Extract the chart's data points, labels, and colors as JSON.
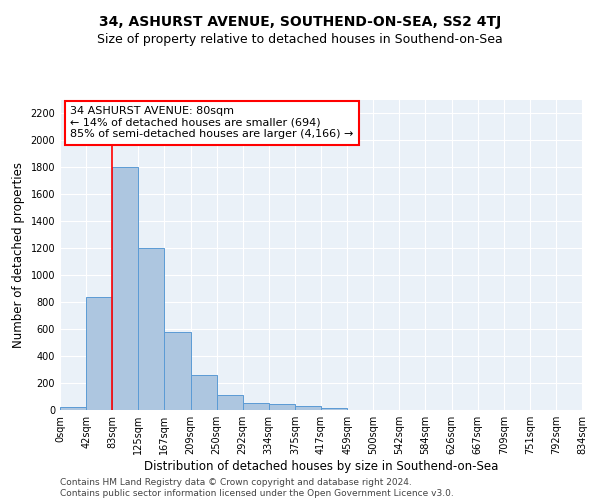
{
  "title": "34, ASHURST AVENUE, SOUTHEND-ON-SEA, SS2 4TJ",
  "subtitle": "Size of property relative to detached houses in Southend-on-Sea",
  "xlabel": "Distribution of detached houses by size in Southend-on-Sea",
  "ylabel": "Number of detached properties",
  "bar_values": [
    25,
    840,
    1800,
    1200,
    580,
    260,
    110,
    50,
    45,
    30,
    15,
    0,
    0,
    0,
    0,
    0,
    0,
    0,
    0,
    0
  ],
  "bar_color": "#adc6e0",
  "bar_edge_color": "#5b9bd5",
  "tick_labels": [
    "0sqm",
    "42sqm",
    "83sqm",
    "125sqm",
    "167sqm",
    "209sqm",
    "250sqm",
    "292sqm",
    "334sqm",
    "375sqm",
    "417sqm",
    "459sqm",
    "500sqm",
    "542sqm",
    "584sqm",
    "626sqm",
    "667sqm",
    "709sqm",
    "751sqm",
    "792sqm",
    "834sqm"
  ],
  "ylim": [
    0,
    2300
  ],
  "yticks": [
    0,
    200,
    400,
    600,
    800,
    1000,
    1200,
    1400,
    1600,
    1800,
    2000,
    2200
  ],
  "annotation_line1": "34 ASHURST AVENUE: 80sqm",
  "annotation_line2": "← 14% of detached houses are smaller (694)",
  "annotation_line3": "85% of semi-detached houses are larger (4,166) →",
  "vline_x": 2,
  "footer_text": "Contains HM Land Registry data © Crown copyright and database right 2024.\nContains public sector information licensed under the Open Government Licence v3.0.",
  "bg_color": "#eaf1f8",
  "grid_color": "#ffffff",
  "title_fontsize": 10,
  "subtitle_fontsize": 9,
  "ylabel_fontsize": 8.5,
  "xlabel_fontsize": 8.5,
  "tick_fontsize": 7,
  "annotation_fontsize": 8,
  "footer_fontsize": 6.5
}
